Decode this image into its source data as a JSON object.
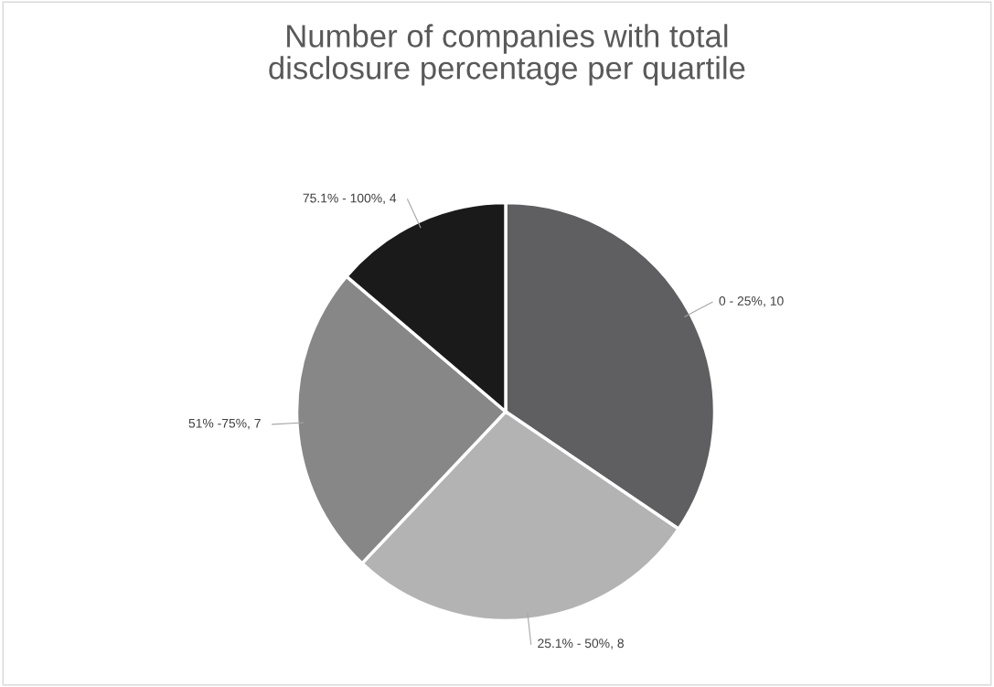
{
  "chart_data": {
    "type": "pie",
    "title": "Number of companies with total\ndisclosure percentage per quartile",
    "categories": [
      "0 - 25%",
      "25.1% - 50%",
      "51% -75%",
      "75.1% - 100%"
    ],
    "values": [
      10,
      8,
      7,
      4
    ],
    "colors": [
      "#5f5f61",
      "#b3b3b3",
      "#878787",
      "#1a1a1a"
    ],
    "value_labels": [
      ", 10",
      ", 8",
      ", 7",
      ", 4"
    ],
    "legend": false
  }
}
